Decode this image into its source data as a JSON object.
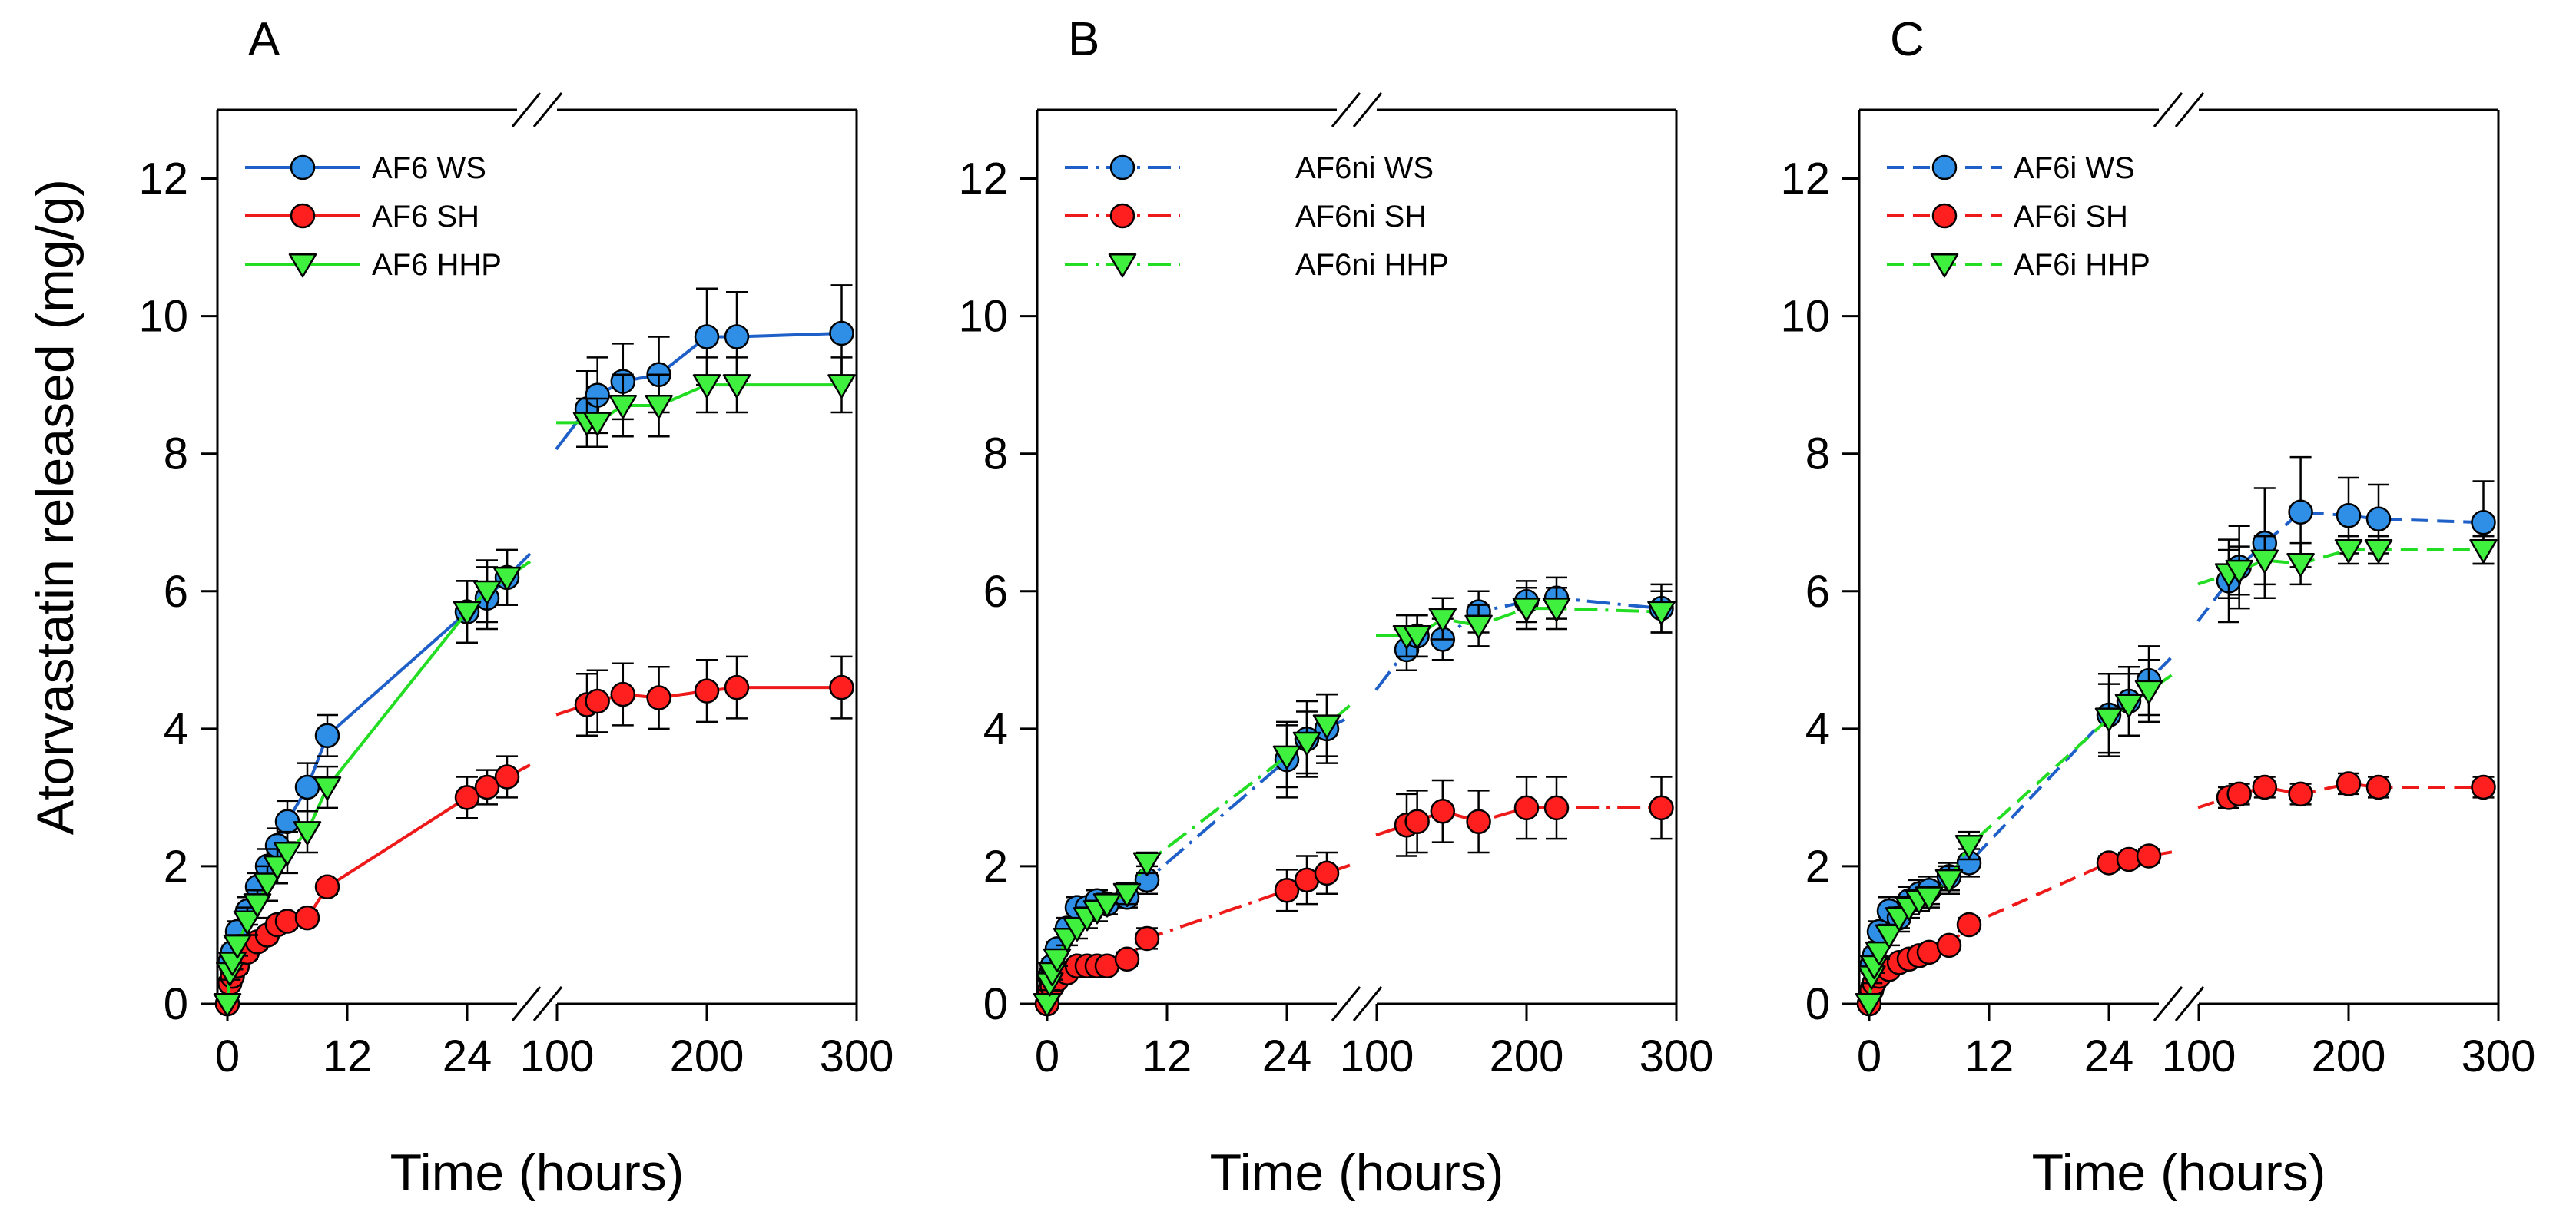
{
  "figure": {
    "ylabel": "Atorvastatin released (mg/g)",
    "xlabel": "Time (hours)"
  },
  "colors": {
    "ws": "#2f8fe6",
    "sh": "#ff1f1f",
    "hhp": "#3ff03f",
    "ws_line": "#1f60c8",
    "sh_line": "#ee1a1a",
    "hhp_line": "#22dd22"
  },
  "chart_data": [
    {
      "type": "line",
      "panel": "A",
      "title": "A",
      "line_style": "solid",
      "xlabel": "Time (hours)",
      "ylabel": "Atorvastatin released (mg/g)",
      "ylim": [
        0,
        13
      ],
      "yticks": [
        0,
        2,
        4,
        6,
        8,
        10,
        12
      ],
      "x_segments": [
        {
          "xlim": [
            -1,
            29
          ],
          "ticks": [
            0,
            12,
            24
          ]
        },
        {
          "xlim": [
            100,
            300
          ],
          "ticks": [
            100,
            200,
            300
          ]
        }
      ],
      "series": [
        {
          "name": "AF6 WS",
          "key": "ws",
          "marker": "circle",
          "x": [
            0,
            0.25,
            0.5,
            1,
            2,
            3,
            4,
            5,
            6,
            8,
            10,
            24,
            26,
            28,
            120,
            127,
            144,
            168,
            200,
            220,
            290
          ],
          "y": [
            0,
            0.6,
            0.75,
            1.05,
            1.35,
            1.7,
            2.0,
            2.3,
            2.65,
            3.15,
            3.9,
            5.7,
            5.9,
            6.2,
            8.65,
            8.85,
            9.05,
            9.15,
            9.7,
            9.7,
            9.75
          ],
          "err": [
            0,
            0.1,
            0.1,
            0.15,
            0.2,
            0.2,
            0.25,
            0.25,
            0.3,
            0.35,
            0.3,
            0.45,
            0.45,
            0.4,
            0.55,
            0.55,
            0.55,
            0.55,
            0.7,
            0.65,
            0.7
          ]
        },
        {
          "name": "AF6 SH",
          "key": "sh",
          "marker": "circle",
          "x": [
            0,
            0.25,
            0.5,
            1,
            2,
            3,
            4,
            5,
            6,
            8,
            10,
            24,
            26,
            28,
            120,
            127,
            144,
            168,
            200,
            220,
            290
          ],
          "y": [
            0,
            0.3,
            0.4,
            0.55,
            0.75,
            0.9,
            1.0,
            1.15,
            1.2,
            1.25,
            1.7,
            3.0,
            3.15,
            3.3,
            4.35,
            4.4,
            4.5,
            4.45,
            4.55,
            4.6,
            4.6
          ],
          "err": [
            0,
            0.05,
            0.05,
            0.1,
            0.1,
            0.1,
            0.1,
            0.1,
            0.1,
            0.1,
            0.1,
            0.3,
            0.25,
            0.3,
            0.45,
            0.45,
            0.45,
            0.45,
            0.45,
            0.45,
            0.45
          ]
        },
        {
          "name": "AF6 HHP",
          "key": "hhp",
          "marker": "triangle",
          "x": [
            0,
            0.25,
            0.5,
            1,
            2,
            3,
            4,
            5,
            6,
            8,
            10,
            24,
            26,
            28,
            120,
            127,
            144,
            168,
            200,
            220,
            290
          ],
          "y": [
            0,
            0.45,
            0.6,
            0.85,
            1.2,
            1.45,
            1.75,
            2.0,
            2.2,
            2.5,
            3.15,
            5.7,
            6.0,
            6.2,
            8.45,
            8.45,
            8.7,
            8.7,
            9.0,
            9.0,
            9.0
          ],
          "err": [
            0,
            0.1,
            0.1,
            0.15,
            0.2,
            0.2,
            0.25,
            0.25,
            0.3,
            0.3,
            0.3,
            0.45,
            0.45,
            0.4,
            0.35,
            0.35,
            0.45,
            0.45,
            0.4,
            0.4,
            0.4
          ]
        }
      ],
      "legend": "top-left"
    },
    {
      "type": "line",
      "panel": "B",
      "title": "B",
      "line_style": "dashdot",
      "xlabel": "Time (hours)",
      "ylabel": "Atorvastatin released (mg/g)",
      "ylim": [
        0,
        13
      ],
      "yticks": [
        0,
        2,
        4,
        6,
        8,
        10,
        12
      ],
      "x_segments": [
        {
          "xlim": [
            -1,
            29
          ],
          "ticks": [
            0,
            12,
            24
          ]
        },
        {
          "xlim": [
            100,
            300
          ],
          "ticks": [
            100,
            200,
            300
          ]
        }
      ],
      "series": [
        {
          "name": "AF6ni WS",
          "key": "ws",
          "marker": "circle",
          "x": [
            0,
            0.25,
            0.5,
            1,
            2,
            3,
            4,
            5,
            6,
            8,
            10,
            24,
            26,
            28,
            120,
            127,
            144,
            168,
            200,
            220,
            290
          ],
          "y": [
            0,
            0.4,
            0.55,
            0.8,
            1.1,
            1.4,
            1.4,
            1.5,
            1.45,
            1.55,
            1.8,
            3.55,
            3.85,
            4.0,
            5.15,
            5.35,
            5.3,
            5.7,
            5.85,
            5.9,
            5.75
          ],
          "err": [
            0,
            0.1,
            0.1,
            0.1,
            0.15,
            0.15,
            0.15,
            0.15,
            0.15,
            0.15,
            0.2,
            0.55,
            0.55,
            0.5,
            0.3,
            0.3,
            0.3,
            0.3,
            0.3,
            0.3,
            0.35
          ]
        },
        {
          "name": "AF6ni SH",
          "key": "sh",
          "marker": "circle",
          "x": [
            0,
            0.25,
            0.5,
            1,
            2,
            3,
            4,
            5,
            6,
            8,
            10,
            24,
            26,
            28,
            120,
            127,
            144,
            168,
            200,
            220,
            290
          ],
          "y": [
            0,
            0.2,
            0.25,
            0.35,
            0.45,
            0.55,
            0.55,
            0.55,
            0.55,
            0.65,
            0.95,
            1.65,
            1.8,
            1.9,
            2.6,
            2.65,
            2.8,
            2.65,
            2.85,
            2.85,
            2.85
          ],
          "err": [
            0,
            0.05,
            0.05,
            0.05,
            0.05,
            0.05,
            0.05,
            0.05,
            0.05,
            0.1,
            0.15,
            0.3,
            0.35,
            0.3,
            0.45,
            0.45,
            0.45,
            0.45,
            0.45,
            0.45,
            0.45
          ]
        },
        {
          "name": "AF6ni HHP",
          "key": "hhp",
          "marker": "triangle",
          "x": [
            0,
            0.25,
            0.5,
            1,
            2,
            3,
            4,
            5,
            6,
            8,
            10,
            24,
            26,
            28,
            120,
            127,
            144,
            168,
            200,
            220,
            290
          ],
          "y": [
            0,
            0.3,
            0.45,
            0.65,
            0.95,
            1.1,
            1.25,
            1.35,
            1.45,
            1.6,
            2.05,
            3.6,
            3.8,
            4.05,
            5.35,
            5.35,
            5.6,
            5.5,
            5.75,
            5.75,
            5.7
          ],
          "err": [
            0,
            0.1,
            0.1,
            0.1,
            0.1,
            0.15,
            0.15,
            0.15,
            0.15,
            0.15,
            0.15,
            0.45,
            0.45,
            0.45,
            0.3,
            0.3,
            0.3,
            0.3,
            0.3,
            0.3,
            0.3
          ]
        }
      ],
      "legend": "top-left"
    },
    {
      "type": "line",
      "panel": "C",
      "title": "C",
      "line_style": "dashed",
      "xlabel": "Time (hours)",
      "ylabel": "Atorvastatin released (mg/g)",
      "ylim": [
        0,
        13
      ],
      "yticks": [
        0,
        2,
        4,
        6,
        8,
        10,
        12
      ],
      "x_segments": [
        {
          "xlim": [
            -1,
            29
          ],
          "ticks": [
            0,
            12,
            24
          ]
        },
        {
          "xlim": [
            100,
            300
          ],
          "ticks": [
            100,
            200,
            300
          ]
        }
      ],
      "series": [
        {
          "name": "AF6i WS",
          "key": "ws",
          "marker": "circle",
          "x": [
            0,
            0.25,
            0.5,
            1,
            2,
            3,
            4,
            5,
            6,
            8,
            10,
            24,
            26,
            28,
            120,
            127,
            144,
            168,
            200,
            220,
            290
          ],
          "y": [
            0,
            0.55,
            0.7,
            1.05,
            1.35,
            1.25,
            1.5,
            1.6,
            1.65,
            1.85,
            2.05,
            4.2,
            4.4,
            4.7,
            6.15,
            6.35,
            6.7,
            7.15,
            7.1,
            7.05,
            7.0
          ],
          "err": [
            0,
            0.1,
            0.1,
            0.15,
            0.2,
            0.2,
            0.2,
            0.2,
            0.2,
            0.2,
            0.2,
            0.6,
            0.5,
            0.5,
            0.6,
            0.6,
            0.8,
            0.8,
            0.55,
            0.5,
            0.6
          ]
        },
        {
          "name": "AF6i SH",
          "key": "sh",
          "marker": "circle",
          "x": [
            0,
            0.25,
            0.5,
            1,
            2,
            3,
            4,
            5,
            6,
            8,
            10,
            24,
            26,
            28,
            120,
            127,
            144,
            168,
            200,
            220,
            290
          ],
          "y": [
            0,
            0.2,
            0.3,
            0.4,
            0.5,
            0.6,
            0.65,
            0.7,
            0.75,
            0.85,
            1.15,
            2.05,
            2.1,
            2.15,
            3.0,
            3.05,
            3.15,
            3.05,
            3.2,
            3.15,
            3.15
          ],
          "err": [
            0,
            0.05,
            0.05,
            0.05,
            0.05,
            0.05,
            0.05,
            0.05,
            0.05,
            0.05,
            0.1,
            0.1,
            0.1,
            0.1,
            0.15,
            0.15,
            0.15,
            0.15,
            0.15,
            0.15,
            0.15
          ]
        },
        {
          "name": "AF6i HHP",
          "key": "hhp",
          "marker": "triangle",
          "x": [
            0,
            0.25,
            0.5,
            1,
            2,
            3,
            4,
            5,
            6,
            8,
            10,
            24,
            26,
            28,
            120,
            127,
            144,
            168,
            200,
            220,
            290
          ],
          "y": [
            0,
            0.4,
            0.55,
            0.75,
            1.0,
            1.25,
            1.4,
            1.5,
            1.55,
            1.8,
            2.3,
            4.15,
            4.35,
            4.55,
            6.25,
            6.3,
            6.45,
            6.4,
            6.6,
            6.6,
            6.6
          ],
          "err": [
            0,
            0.1,
            0.1,
            0.1,
            0.15,
            0.15,
            0.15,
            0.15,
            0.15,
            0.2,
            0.2,
            0.5,
            0.45,
            0.45,
            0.35,
            0.35,
            0.35,
            0.3,
            0.2,
            0.2,
            0.2
          ]
        }
      ],
      "legend": "top-left"
    }
  ]
}
